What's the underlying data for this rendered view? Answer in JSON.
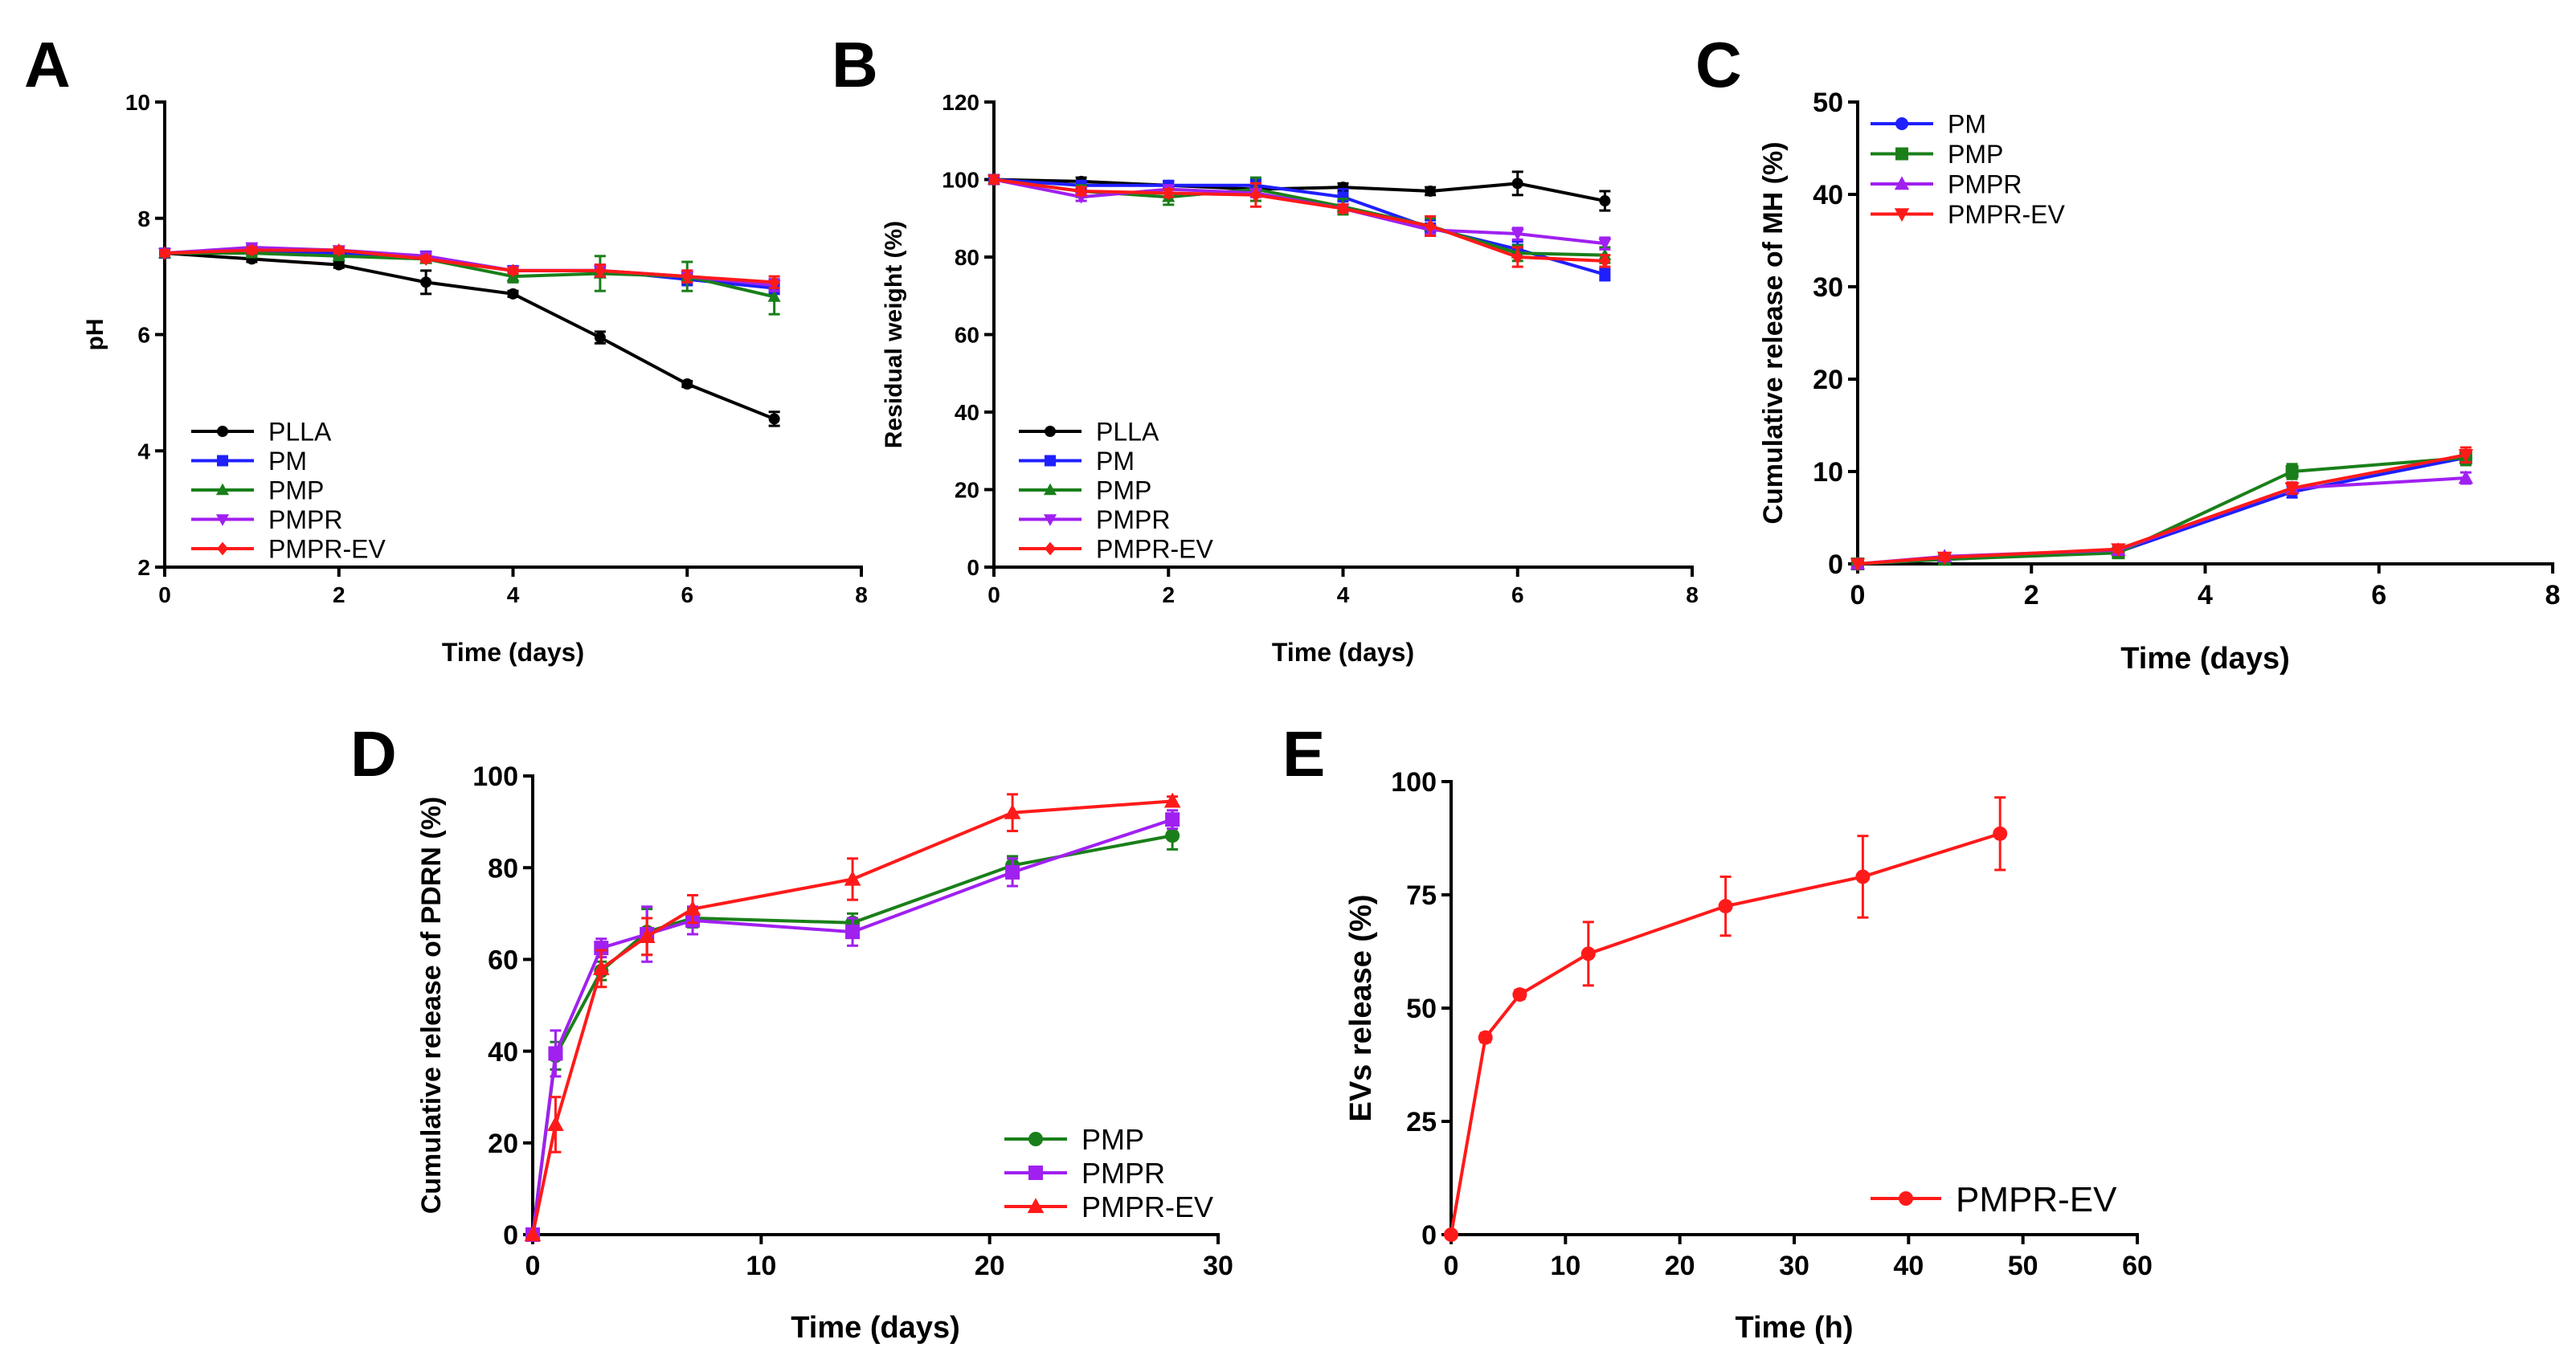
{
  "chart_data": [
    {
      "panel_label": "A",
      "type": "line",
      "xlabel": "Time (days)",
      "ylabel": "pH",
      "xlim": [
        0,
        8
      ],
      "ylim": [
        2,
        10
      ],
      "xticks": [
        "0",
        "2",
        "4",
        "6",
        "8"
      ],
      "yticks": [
        "2",
        "4",
        "6",
        "8",
        "10"
      ],
      "legend": "bottom-left",
      "series": [
        {
          "name": "PLLA",
          "color": "#000000",
          "marker": "circle",
          "x": [
            0,
            1,
            2,
            3,
            4,
            5,
            6,
            7
          ],
          "y": [
            7.4,
            7.3,
            7.2,
            6.9,
            6.7,
            5.95,
            5.15,
            4.55
          ],
          "err": [
            0.05,
            0.05,
            0.05,
            0.2,
            0.05,
            0.1,
            0.05,
            0.12
          ]
        },
        {
          "name": "PM",
          "color": "#1f1fff",
          "marker": "square",
          "x": [
            0,
            1,
            2,
            3,
            4,
            5,
            6,
            7
          ],
          "y": [
            7.4,
            7.45,
            7.4,
            7.35,
            7.1,
            7.1,
            6.95,
            6.8
          ],
          "err": [
            0.05,
            0.05,
            0.05,
            0.05,
            0.05,
            0.1,
            0.1,
            0.1
          ]
        },
        {
          "name": "PMP",
          "color": "#1a7f1a",
          "marker": "triangle-up",
          "x": [
            0,
            1,
            2,
            3,
            4,
            5,
            6,
            7
          ],
          "y": [
            7.4,
            7.4,
            7.35,
            7.3,
            7.0,
            7.05,
            7.0,
            6.65
          ],
          "err": [
            0.05,
            0.05,
            0.05,
            0.05,
            0.1,
            0.3,
            0.25,
            0.3
          ]
        },
        {
          "name": "PMPR",
          "color": "#a020f0",
          "marker": "triangle-down",
          "x": [
            0,
            1,
            2,
            3,
            4,
            5,
            6,
            7
          ],
          "y": [
            7.4,
            7.5,
            7.45,
            7.35,
            7.1,
            7.1,
            7.0,
            6.85
          ],
          "err": [
            0.05,
            0.05,
            0.05,
            0.05,
            0.05,
            0.1,
            0.1,
            0.1
          ]
        },
        {
          "name": "PMPR-EV",
          "color": "#ff1a1a",
          "marker": "diamond",
          "x": [
            0,
            1,
            2,
            3,
            4,
            5,
            6,
            7
          ],
          "y": [
            7.4,
            7.45,
            7.45,
            7.3,
            7.1,
            7.1,
            7.0,
            6.9
          ],
          "err": [
            0.05,
            0.05,
            0.05,
            0.05,
            0.05,
            0.1,
            0.1,
            0.1
          ]
        }
      ]
    },
    {
      "panel_label": "B",
      "type": "line",
      "xlabel": "Time (days)",
      "ylabel": "Residual weight (%)",
      "xlim": [
        0,
        8
      ],
      "ylim": [
        0,
        120
      ],
      "xticks": [
        "0",
        "2",
        "4",
        "6",
        "8"
      ],
      "yticks": [
        "0",
        "20",
        "40",
        "60",
        "80",
        "100",
        "120"
      ],
      "legend": "bottom-left",
      "series": [
        {
          "name": "PLLA",
          "color": "#000000",
          "marker": "circle",
          "x": [
            0,
            1,
            2,
            3,
            4,
            5,
            6,
            7
          ],
          "y": [
            100,
            99.5,
            98.5,
            97.5,
            98,
            97,
            99,
            94.5
          ],
          "err": [
            1,
            1,
            1,
            1,
            1,
            1,
            3,
            2.5
          ]
        },
        {
          "name": "PM",
          "color": "#1f1fff",
          "marker": "square",
          "x": [
            0,
            1,
            2,
            3,
            4,
            5,
            6,
            7
          ],
          "y": [
            100,
            98.5,
            98.5,
            98.5,
            95.5,
            87.5,
            82,
            75.5
          ],
          "err": [
            1,
            1,
            1,
            1.5,
            2,
            2,
            2,
            1.5
          ]
        },
        {
          "name": "PMP",
          "color": "#1a7f1a",
          "marker": "triangle-up",
          "x": [
            0,
            1,
            2,
            3,
            4,
            5,
            6,
            7
          ],
          "y": [
            100,
            97,
            95.5,
            97.5,
            93,
            88,
            81,
            80.5
          ],
          "err": [
            1,
            1.5,
            2,
            3,
            2,
            2,
            2,
            2
          ]
        },
        {
          "name": "PMPR",
          "color": "#a020f0",
          "marker": "triangle-down",
          "x": [
            0,
            1,
            2,
            3,
            4,
            5,
            6,
            7
          ],
          "y": [
            100,
            95.5,
            97.5,
            96.5,
            92.5,
            87,
            86,
            83.5
          ],
          "err": [
            1,
            1,
            1,
            1,
            1,
            1,
            1.5,
            1.5
          ]
        },
        {
          "name": "PMPR-EV",
          "color": "#ff1a1a",
          "marker": "diamond",
          "x": [
            0,
            1,
            2,
            3,
            4,
            5,
            6,
            7
          ],
          "y": [
            100,
            97,
            96.5,
            96,
            92.5,
            88,
            80,
            79
          ],
          "err": [
            1,
            1,
            1,
            3,
            1,
            2.5,
            2.5,
            1.5
          ]
        }
      ]
    },
    {
      "panel_label": "C",
      "type": "line",
      "xlabel": "Time (days)",
      "ylabel": "Cumulative release of MH (%)",
      "xlim": [
        0,
        8
      ],
      "ylim": [
        0,
        50
      ],
      "xticks": [
        "0",
        "2",
        "4",
        "6",
        "8"
      ],
      "yticks": [
        "0",
        "10",
        "20",
        "30",
        "40",
        "50"
      ],
      "legend": "top-left",
      "series": [
        {
          "name": "PM",
          "color": "#1f1fff",
          "marker": "circle",
          "x": [
            0,
            1,
            3,
            5,
            7
          ],
          "y": [
            0,
            0.5,
            1.3,
            7.8,
            11.5
          ],
          "err": [
            0,
            0.3,
            0.3,
            0.6,
            0.8
          ]
        },
        {
          "name": "PMP",
          "color": "#1a7f1a",
          "marker": "square",
          "x": [
            0,
            1,
            3,
            5,
            7
          ],
          "y": [
            0,
            0.5,
            1.2,
            10.0,
            11.5
          ],
          "err": [
            0,
            0.3,
            0.3,
            0.8,
            0.8
          ]
        },
        {
          "name": "PMPR",
          "color": "#a020f0",
          "marker": "triangle-up",
          "x": [
            0,
            1,
            3,
            5,
            7
          ],
          "y": [
            0,
            0.8,
            1.5,
            8.2,
            9.3
          ],
          "err": [
            0,
            0.3,
            0.3,
            0.6,
            0.6
          ]
        },
        {
          "name": "PMPR-EV",
          "color": "#ff1a1a",
          "marker": "triangle-down",
          "x": [
            0,
            1,
            3,
            5,
            7
          ],
          "y": [
            0,
            0.7,
            1.6,
            8.2,
            11.8
          ],
          "err": [
            0,
            0.3,
            0.3,
            0.6,
            0.8
          ]
        }
      ]
    },
    {
      "panel_label": "D",
      "type": "line",
      "xlabel": "Time (days)",
      "ylabel": "Cumulative release of PDRN (%)",
      "xlim": [
        0,
        30
      ],
      "ylim": [
        0,
        100
      ],
      "xticks": [
        "0",
        "10",
        "20",
        "30"
      ],
      "yticks": [
        "0",
        "20",
        "40",
        "60",
        "80",
        "100"
      ],
      "legend": "bottom-right",
      "series": [
        {
          "name": "PMP",
          "color": "#1a7f1a",
          "marker": "circle",
          "x": [
            0,
            1,
            3,
            5,
            7,
            14,
            21,
            28
          ],
          "y": [
            0,
            39,
            57.5,
            66,
            69,
            68,
            80.5,
            87
          ],
          "err": [
            0,
            3,
            2,
            5,
            2,
            2,
            2,
            3
          ]
        },
        {
          "name": "PMPR",
          "color": "#a020f0",
          "marker": "square",
          "x": [
            0,
            1,
            3,
            5,
            7,
            14,
            21,
            28
          ],
          "y": [
            0,
            39.5,
            62.5,
            65.5,
            68.5,
            66,
            79,
            90.5
          ],
          "err": [
            0,
            5,
            2,
            6,
            3,
            3,
            3,
            2
          ]
        },
        {
          "name": "PMPR-EV",
          "color": "#ff1a1a",
          "marker": "triangle-up",
          "x": [
            0,
            1,
            3,
            5,
            7,
            14,
            21,
            28
          ],
          "y": [
            0,
            24,
            58,
            65,
            71,
            77.5,
            92,
            94.5
          ],
          "err": [
            0,
            6,
            4,
            4,
            3,
            4.5,
            4,
            1
          ]
        }
      ]
    },
    {
      "panel_label": "E",
      "type": "line",
      "xlabel": "Time (h)",
      "ylabel": "EVs release (%)",
      "xlim": [
        0,
        60
      ],
      "ylim": [
        0,
        100
      ],
      "xticks": [
        "0",
        "10",
        "20",
        "30",
        "40",
        "50",
        "60"
      ],
      "yticks": [
        "0",
        "25",
        "50",
        "75",
        "100"
      ],
      "legend": "bottom-right",
      "series": [
        {
          "name": "PMPR-EV",
          "color": "#ff1a1a",
          "marker": "circle",
          "x": [
            0,
            3,
            6,
            12,
            24,
            36,
            48
          ],
          "y": [
            0,
            43.5,
            53,
            62,
            72.5,
            79,
            88.5
          ],
          "err": [
            0,
            1,
            1,
            7,
            6.5,
            9,
            8
          ]
        }
      ]
    }
  ]
}
